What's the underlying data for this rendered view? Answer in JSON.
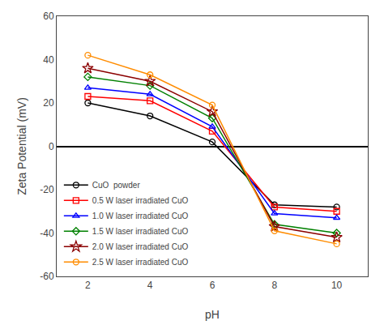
{
  "chart_data": {
    "type": "line",
    "x_label": "pH",
    "y_label": "Zeta Potential (mV)",
    "x": [
      2,
      4,
      6,
      8,
      10
    ],
    "series": [
      {
        "name": "CuO  powder",
        "color": "#000000",
        "marker": "circle",
        "values": [
          20,
          14,
          2,
          -27,
          -28
        ]
      },
      {
        "name": "0.5 W laser irradiated CuO",
        "color": "#ff0000",
        "marker": "square",
        "values": [
          23,
          21,
          7,
          -28,
          -30
        ]
      },
      {
        "name": "1.0 W laser irradiated CuO",
        "color": "#0000ff",
        "marker": "triangle-up",
        "values": [
          27,
          24,
          9,
          -31,
          -33
        ]
      },
      {
        "name": "1.5 W laser irradiated CuO",
        "color": "#008000",
        "marker": "diamond",
        "values": [
          32,
          28,
          13,
          -36,
          -40
        ]
      },
      {
        "name": "2.0 W laser irradiated CuO",
        "color": "#8b0000",
        "marker": "star",
        "values": [
          36,
          30,
          16,
          -37,
          -42
        ]
      },
      {
        "name": "2.5 W laser irradiated CuO",
        "color": "#ff8c00",
        "marker": "circle",
        "values": [
          42,
          33,
          19,
          -39,
          -45
        ]
      }
    ],
    "xlim": [
      1,
      11
    ],
    "xticks": [
      2,
      4,
      6,
      8,
      10
    ],
    "ylim": [
      -60,
      60
    ],
    "yticks": [
      -60,
      -40,
      -20,
      0,
      20,
      40,
      60
    ],
    "grid": false,
    "legend": "lower left"
  }
}
